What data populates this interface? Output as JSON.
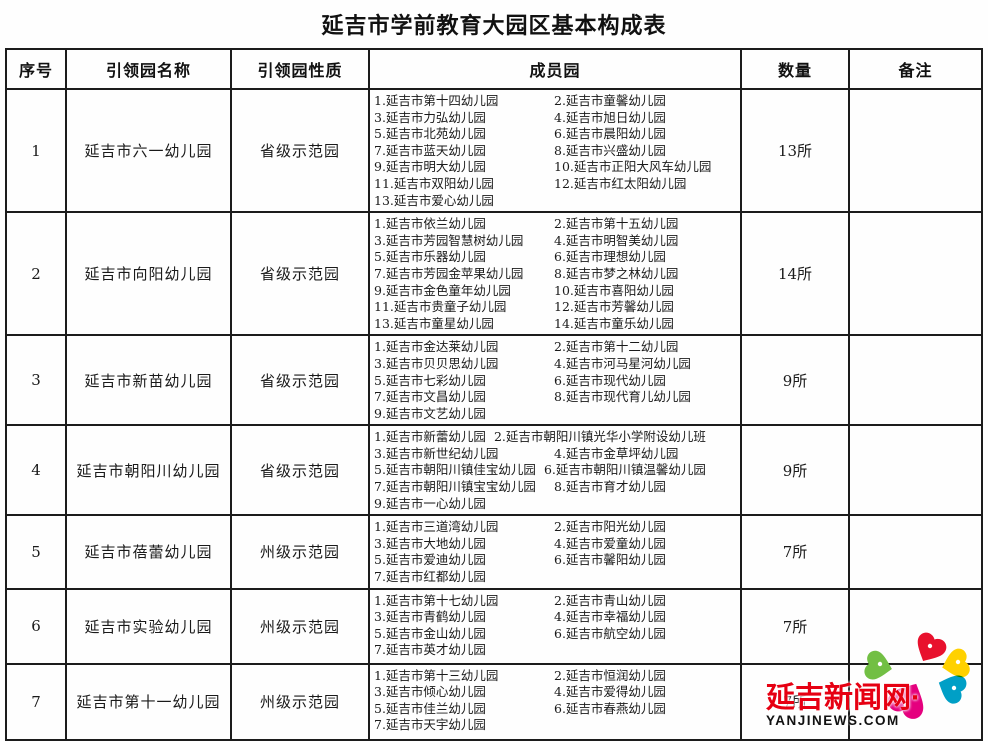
{
  "title": "延吉市学前教育大园区基本构成表",
  "table": {
    "headers": [
      "序号",
      "引领园名称",
      "引领园性质",
      "成员园",
      "数量",
      "备注"
    ],
    "rows": [
      {
        "index": "1",
        "name": "延吉市六一幼儿园",
        "nature": "省级示范园",
        "members": [
          "1.延吉市第十四幼儿园",
          "2.延吉市童馨幼儿园",
          "3.延吉市力弘幼儿园",
          "4.延吉市旭日幼儿园",
          "5.延吉市北苑幼儿园",
          "6.延吉市晨阳幼儿园",
          "7.延吉市蓝天幼儿园",
          "8.延吉市兴盛幼儿园",
          "9.延吉市明大幼儿园",
          "10.延吉市正阳大风车幼儿园",
          "11.延吉市双阳幼儿园",
          "12.延吉市红太阳幼儿园",
          "13.延吉市爱心幼儿园"
        ],
        "quantity": "13所",
        "remark": ""
      },
      {
        "index": "2",
        "name": "延吉市向阳幼儿园",
        "nature": "省级示范园",
        "members": [
          "1.延吉市依兰幼儿园",
          "2.延吉市第十五幼儿园",
          "3.延吉市芳园智慧树幼儿园",
          "4.延吉市明智美幼儿园",
          "5.延吉市乐器幼儿园",
          "6.延吉市理想幼儿园",
          "7.延吉市芳园金苹果幼儿园",
          "8.延吉市梦之林幼儿园",
          "9.延吉市金色童年幼儿园",
          "10.延吉市喜阳幼儿园",
          "11.延吉市贵童子幼儿园",
          "12.延吉市芳馨幼儿园",
          "13.延吉市童星幼儿园",
          "14.延吉市童乐幼儿园"
        ],
        "quantity": "14所",
        "remark": ""
      },
      {
        "index": "3",
        "name": "延吉市新苗幼儿园",
        "nature": "省级示范园",
        "members": [
          "1.延吉市金达莱幼儿园",
          "2.延吉市第十二幼儿园",
          "3.延吉市贝贝思幼儿园",
          "4.延吉市河马星河幼儿园",
          "5.延吉市七彩幼儿园",
          "6.延吉市现代幼儿园",
          "7.延吉市文昌幼儿园",
          "8.延吉市现代育儿幼儿园",
          "9.延吉市文艺幼儿园"
        ],
        "quantity": "9所",
        "remark": ""
      },
      {
        "index": "4",
        "name": "延吉市朝阳川幼儿园",
        "nature": "省级示范园",
        "members": [
          "1.延吉市新蕾幼儿园",
          "2.延吉市朝阳川镇光华小学附设幼儿班",
          "3.延吉市新世纪幼儿园",
          "4.延吉市金草坪幼儿园",
          "5.延吉市朝阳川镇佳宝幼儿园",
          "6.延吉市朝阳川镇温馨幼儿园",
          "7.延吉市朝阳川镇宝宝幼儿园",
          "8.延吉市育才幼儿园",
          "9.延吉市一心幼儿园"
        ],
        "quantity": "9所",
        "remark": ""
      },
      {
        "index": "5",
        "name": "延吉市蓓蕾幼儿园",
        "nature": "州级示范园",
        "members": [
          "1.延吉市三道湾幼儿园",
          "2.延吉市阳光幼儿园",
          "3.延吉市大地幼儿园",
          "4.延吉市爱童幼儿园",
          "5.延吉市爱迪幼儿园",
          "6.延吉市馨阳幼儿园",
          "7.延吉市红都幼儿园"
        ],
        "quantity": "7所",
        "remark": ""
      },
      {
        "index": "6",
        "name": "延吉市实验幼儿园",
        "nature": "州级示范园",
        "members": [
          "1.延吉市第十七幼儿园",
          "2.延吉市青山幼儿园",
          "3.延吉市青鹤幼儿园",
          "4.延吉市幸福幼儿园",
          "5.延吉市金山幼儿园",
          "6.延吉市航空幼儿园",
          "7.延吉市英才幼儿园"
        ],
        "quantity": "7所",
        "remark": ""
      },
      {
        "index": "7",
        "name": "延吉市第十一幼儿园",
        "nature": "州级示范园",
        "members": [
          "1.延吉市第十三幼儿园",
          "2.延吉市恒润幼儿园",
          "3.延吉市倾心幼儿园",
          "4.延吉市爱得幼儿园",
          "5.延吉市佳兰幼儿园",
          "6.延吉市春燕幼儿园",
          "7.延吉市天宇幼儿园"
        ],
        "quantity": "7所",
        "remark": ""
      }
    ]
  },
  "logo": {
    "site_name": "延吉新闻网·",
    "site_domain": "YANJINEWS.COM",
    "name_color": "#e60012",
    "domain_color": "#111111",
    "petals": [
      "#e8112d",
      "#ffd100",
      "#009fc6",
      "#72bf44",
      "#e5007e"
    ]
  }
}
